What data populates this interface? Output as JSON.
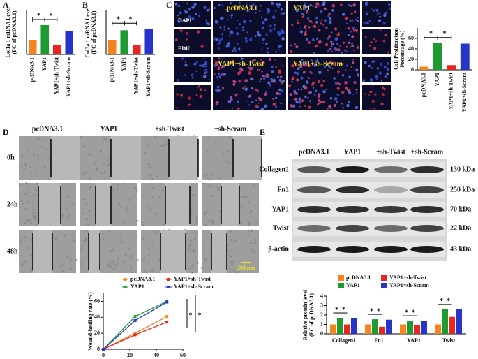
{
  "panel_labels": [
    "A",
    "B",
    "C",
    "D",
    "E"
  ],
  "images": {
    "c_channels": [
      "DAPI",
      "EDU"
    ],
    "c_conditions": [
      "pcDNA3.1",
      "YAP1",
      "YAP1+sh-Twist",
      "YAP1+sh-Scram"
    ],
    "d_columns": [
      "pcDNA3.1",
      "YAP1",
      "+sh-Twist",
      "+sh-Scram"
    ],
    "d_rows": [
      "0h",
      "24h",
      "48h"
    ],
    "scale_bar": "200 μm",
    "e_columns": [
      "pcDNA3.1",
      "YAP1",
      "+sh-Twist",
      "+sh-Scram"
    ],
    "e_rows": [
      "Collagen1",
      "Fn1",
      "YAP1",
      "Twist",
      "β-actin"
    ],
    "e_kda": [
      "130 kDa",
      "250 kDa",
      "70 kDa",
      "22 kDa",
      "43 kDa"
    ]
  },
  "chart_data": [
    {
      "type": "bar",
      "ylabel": [
        "Col1a 1 mRNA Level",
        "(FC of pcDNA3.1)"
      ],
      "categories": [
        "pcDNA3.1",
        "YAP1",
        "YAP1+sh-Twist",
        "YAP1+sh-Scram"
      ],
      "values": [
        1,
        2.0,
        0.65,
        1.6
      ],
      "colors": [
        "#f5841f",
        "#1e9b2e",
        "#e8251f",
        "#2634c8"
      ],
      "ylim": [
        0,
        3
      ],
      "annotations": [
        "*",
        "*"
      ]
    },
    {
      "type": "bar",
      "ylabel": [
        "Col3a 1 mRNA Level",
        "(FC of pcDNA3.1)"
      ],
      "categories": [
        "pcDNA3.1",
        "YAP1",
        "YAP1+sh-Twist",
        "YAP1+sh-Scram"
      ],
      "values": [
        1,
        1.65,
        0.65,
        1.75
      ],
      "colors": [
        "#f5841f",
        "#1e9b2e",
        "#e8251f",
        "#2634c8"
      ],
      "ylim": [
        0,
        3
      ],
      "annotations": [
        "*",
        "*"
      ]
    },
    {
      "type": "bar",
      "ylabel": [
        "Cell Proliferation",
        "Percentage (%)"
      ],
      "categories": [
        "pcDNA3.1",
        "YAP1",
        "YAP1+sh-Twist",
        "YAP1+sh-Scram"
      ],
      "values": [
        6,
        51,
        9,
        50
      ],
      "colors": [
        "#f5841f",
        "#1e9b2e",
        "#e8251f",
        "#2634c8"
      ],
      "ylim": [
        0,
        80
      ],
      "yticks": [
        0,
        20,
        40,
        60
      ],
      "annotations": [
        "*",
        "*"
      ]
    },
    {
      "type": "line",
      "ylabel": [
        "Wound-healing rate (%)"
      ],
      "x": [
        0,
        24,
        48
      ],
      "xlim": [
        0,
        60
      ],
      "xticks": [
        0,
        20,
        40,
        60
      ],
      "ylim": [
        0,
        70
      ],
      "yticks": [
        0,
        20,
        40,
        60
      ],
      "series": [
        {
          "name": "pcDNA3.1",
          "color": "#f5841f",
          "values": [
            0,
            20,
            41
          ]
        },
        {
          "name": "YAP1",
          "color": "#1e9b2e",
          "values": [
            0,
            41,
            60
          ]
        },
        {
          "name": "YAP1+sh-Twist",
          "color": "#e8251f",
          "values": [
            0,
            18,
            34
          ]
        },
        {
          "name": "YAP1+sh-Scram",
          "color": "#2634c8",
          "values": [
            0,
            36,
            59
          ]
        }
      ],
      "annotations": [
        "*",
        "*"
      ]
    },
    {
      "type": "bar",
      "ylabel": [
        "Relative protein level",
        "(FC of pcDNA3.1)"
      ],
      "categories": [
        "Collagen1",
        "Fn1",
        "YAP1",
        "Twist"
      ],
      "ylim": [
        0,
        4
      ],
      "yticks": [
        0,
        1,
        2,
        3,
        4
      ],
      "series": [
        {
          "name": "pcDNA3.1",
          "color": "#f5841f",
          "values": [
            1,
            1,
            1,
            1
          ]
        },
        {
          "name": "YAP1",
          "color": "#1e9b2e",
          "values": [
            1.7,
            1.55,
            1.4,
            2.6
          ]
        },
        {
          "name": "YAP1+sh-Twist",
          "color": "#e8251f",
          "values": [
            1.0,
            0.75,
            0.9,
            1.8
          ]
        },
        {
          "name": "YAP1+sh-Scram",
          "color": "#2634c8",
          "values": [
            1.7,
            1.5,
            1.4,
            2.65
          ]
        }
      ],
      "annotations": [
        "*",
        "*",
        "*",
        "*",
        "*",
        "*",
        "*",
        "*"
      ]
    }
  ]
}
